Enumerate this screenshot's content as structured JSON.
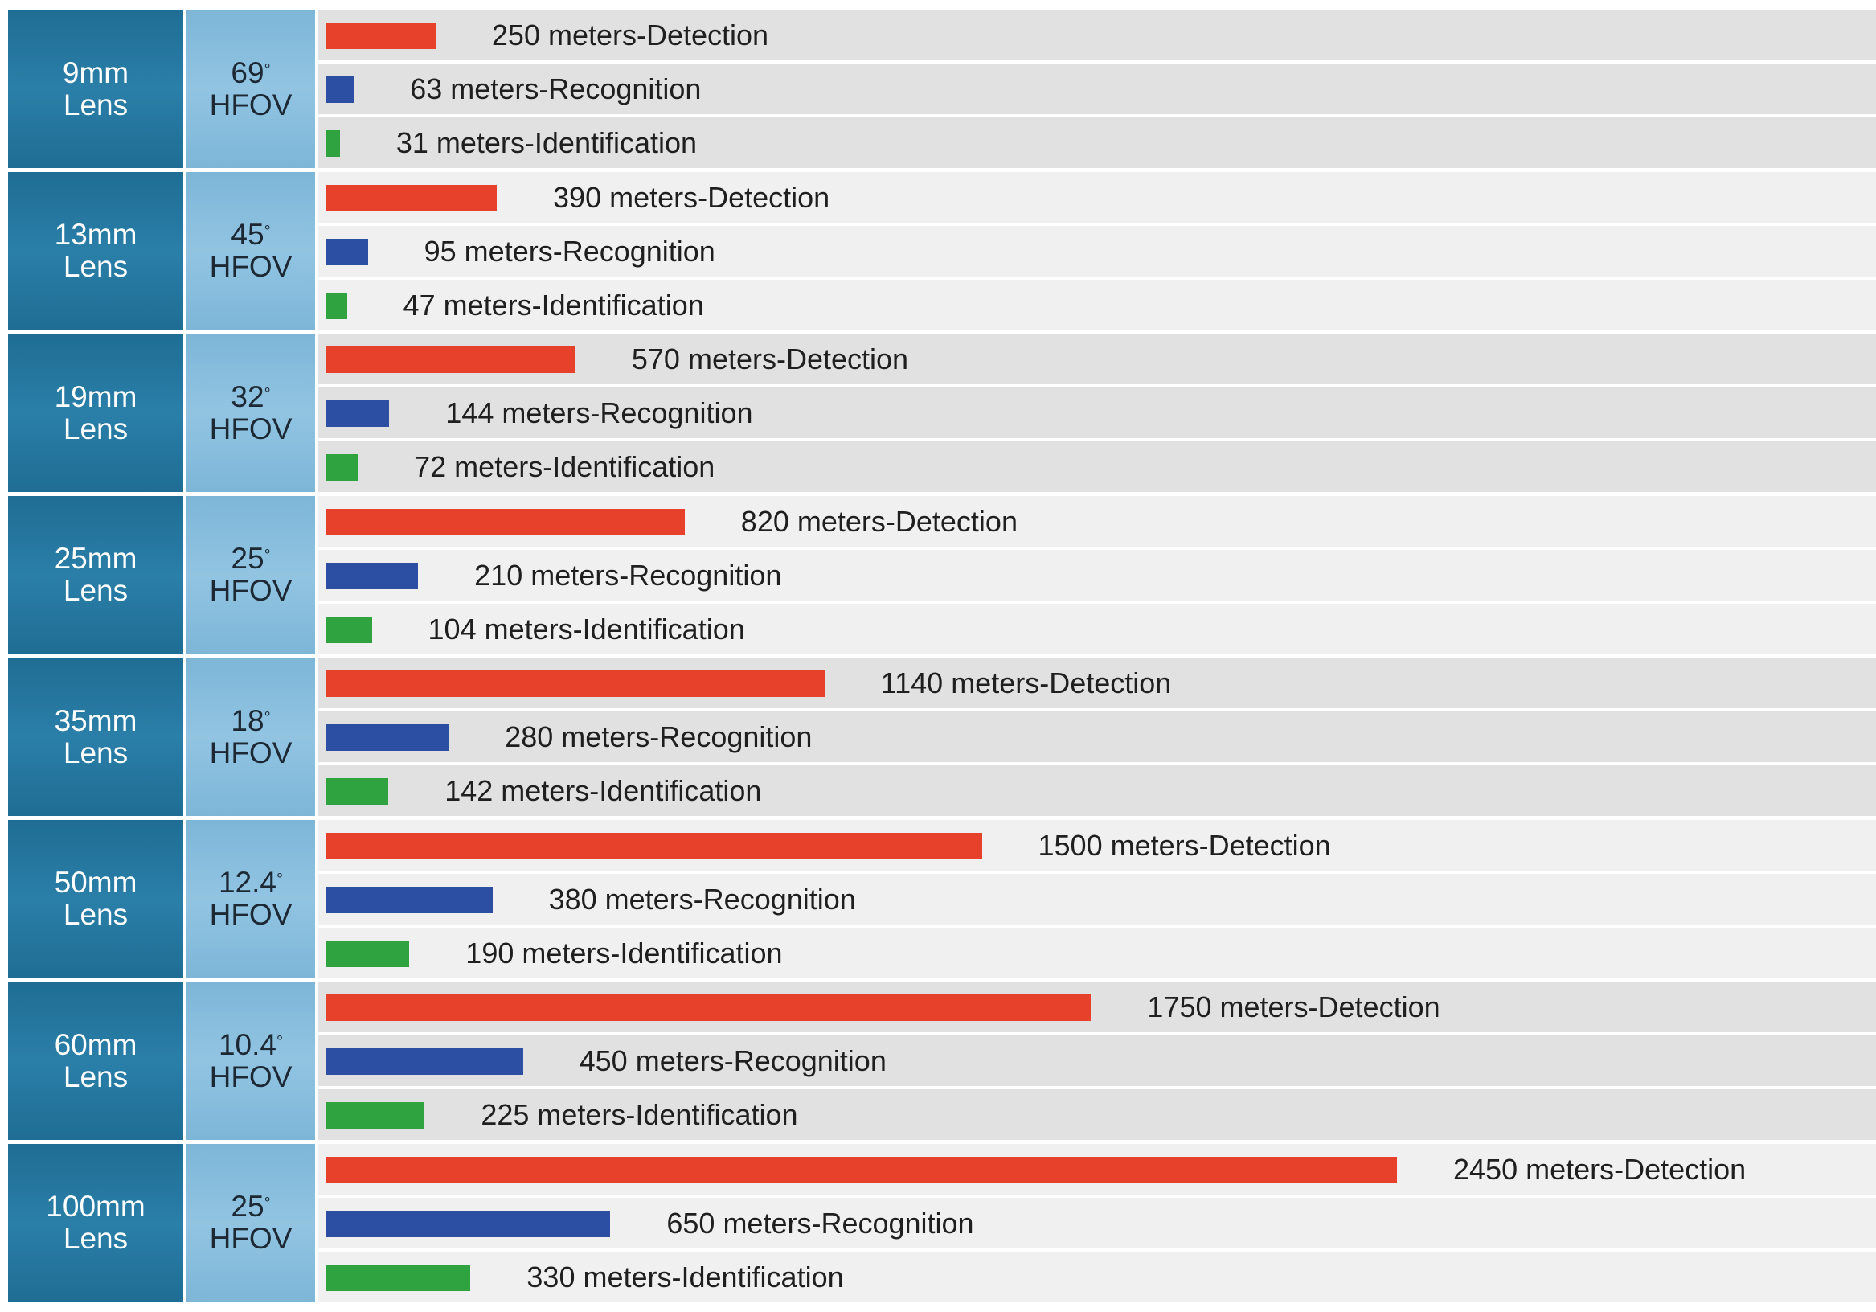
{
  "chart_data": {
    "type": "bar",
    "orientation": "horizontal",
    "colors": {
      "detection": "#e8412b",
      "recognition": "#2c4ea3",
      "identification": "#2ea33f",
      "lens_cell": "#1f6d94",
      "fov_cell": "#85bcdc"
    },
    "x_max": 2450,
    "groups": [
      {
        "lens": [
          "9mm",
          "Lens"
        ],
        "fov": "69",
        "fov_unit": "HFOV",
        "detection": 250,
        "detection_label": "250 meters-Detection",
        "recognition": 63,
        "recognition_label": "63 meters-Recognition",
        "identification": 31,
        "identification_label": "31 meters-Identification"
      },
      {
        "lens": [
          "13mm",
          "Lens"
        ],
        "fov": "45",
        "fov_unit": "HFOV",
        "detection": 390,
        "detection_label": "390 meters-Detection",
        "recognition": 95,
        "recognition_label": "95 meters-Recognition",
        "identification": 47,
        "identification_label": "47 meters-Identification"
      },
      {
        "lens": [
          "19mm",
          "Lens"
        ],
        "fov": "32",
        "fov_unit": "HFOV",
        "detection": 570,
        "detection_label": "570 meters-Detection",
        "recognition": 144,
        "recognition_label": "144 meters-Recognition",
        "identification": 72,
        "identification_label": "72 meters-Identification"
      },
      {
        "lens": [
          "25mm",
          "Lens"
        ],
        "fov": "25",
        "fov_unit": "HFOV",
        "detection": 820,
        "detection_label": "820 meters-Detection",
        "recognition": 210,
        "recognition_label": "210 meters-Recognition",
        "identification": 104,
        "identification_label": "104 meters-Identification"
      },
      {
        "lens": [
          "35mm",
          "Lens"
        ],
        "fov": "18",
        "fov_unit": "HFOV",
        "detection": 1140,
        "detection_label": "1140 meters-Detection",
        "recognition": 280,
        "recognition_label": "280 meters-Recognition",
        "identification": 142,
        "identification_label": "142 meters-Identification"
      },
      {
        "lens": [
          "50mm",
          "Lens"
        ],
        "fov": "12.4",
        "fov_unit": "HFOV",
        "detection": 1500,
        "detection_label": "1500 meters-Detection",
        "recognition": 380,
        "recognition_label": "380 meters-Recognition",
        "identification": 190,
        "identification_label": "190 meters-Identification"
      },
      {
        "lens": [
          "60mm",
          "Lens"
        ],
        "fov": "10.4",
        "fov_unit": "HFOV",
        "detection": 1750,
        "detection_label": "1750 meters-Detection",
        "recognition": 450,
        "recognition_label": "450 meters-Recognition",
        "identification": 225,
        "identification_label": "225 meters-Identification"
      },
      {
        "lens": [
          "100mm",
          "Lens"
        ],
        "fov": "25",
        "fov_unit": "HFOV",
        "detection": 2450,
        "detection_label": "2450 meters-Detection",
        "recognition": 650,
        "recognition_label": "650 meters-Recognition",
        "identification": 330,
        "identification_label": "330 meters-Identification"
      }
    ]
  }
}
